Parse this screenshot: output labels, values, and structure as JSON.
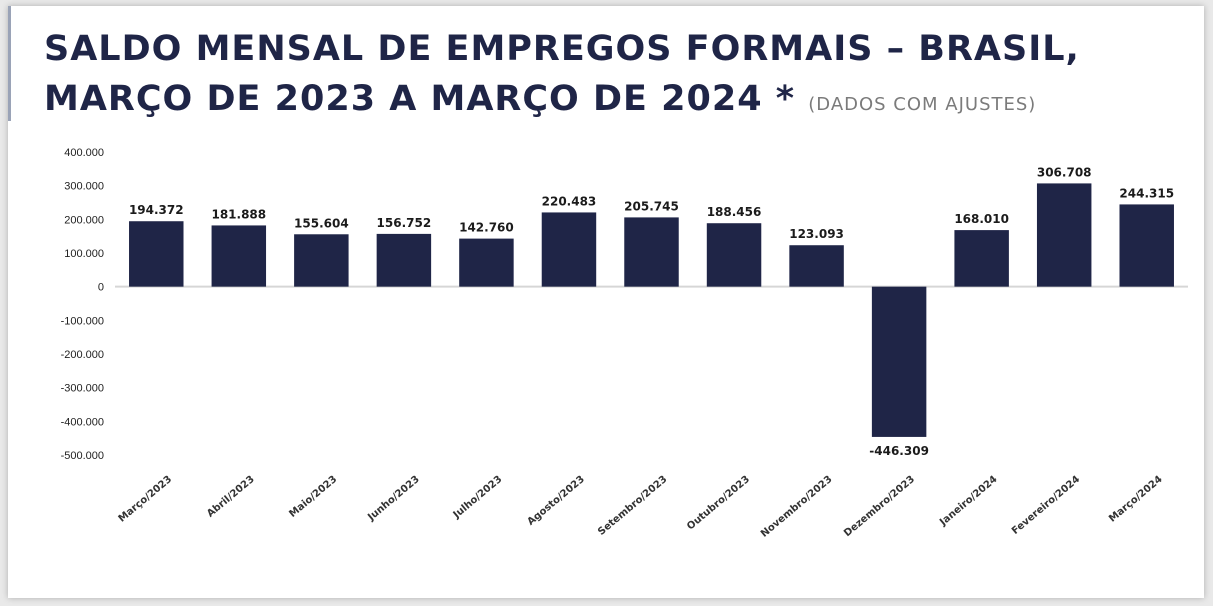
{
  "title": {
    "main": "SALDO MENSAL DE EMPREGOS FORMAIS – BRASIL, MARÇO DE 2023 A MARÇO DE 2024",
    "star": "*",
    "note": "(DADOS COM AJUSTES)"
  },
  "colors": {
    "bar": "#1f2547",
    "axis": "#d6d6d6"
  },
  "chart_data": {
    "type": "bar",
    "title": "SALDO MENSAL DE EMPREGOS FORMAIS – BRASIL, MARÇO DE 2023 A MARÇO DE 2024 * (DADOS COM AJUSTES)",
    "xlabel": "",
    "ylabel": "",
    "ylim": [
      -500000,
      400000
    ],
    "yticks": [
      400000,
      300000,
      200000,
      100000,
      0,
      -100000,
      -200000,
      -300000,
      -400000,
      -500000
    ],
    "ytick_labels": [
      "400.000",
      "300.000",
      "200.000",
      "100.000",
      "0",
      "-100.000",
      "-200.000",
      "-300.000",
      "-400.000",
      "-500.000"
    ],
    "categories": [
      "Março/2023",
      "Abril/2023",
      "Maio/2023",
      "Junho/2023",
      "Julho/2023",
      "Agosto/2023",
      "Setembro/2023",
      "Outubro/2023",
      "Novembro/2023",
      "Dezembro/2023",
      "Janeiro/2024",
      "Fevereiro/2024",
      "Março/2024"
    ],
    "values": [
      194372,
      181888,
      155604,
      156752,
      142760,
      220483,
      205745,
      188456,
      123093,
      -446309,
      168010,
      306708,
      244315
    ],
    "value_labels": [
      "194.372",
      "181.888",
      "155.604",
      "156.752",
      "142.760",
      "220.483",
      "205.745",
      "188.456",
      "123.093",
      "-446.309",
      "168.010",
      "306.708",
      "244.315"
    ],
    "grid": false,
    "legend": "none"
  }
}
